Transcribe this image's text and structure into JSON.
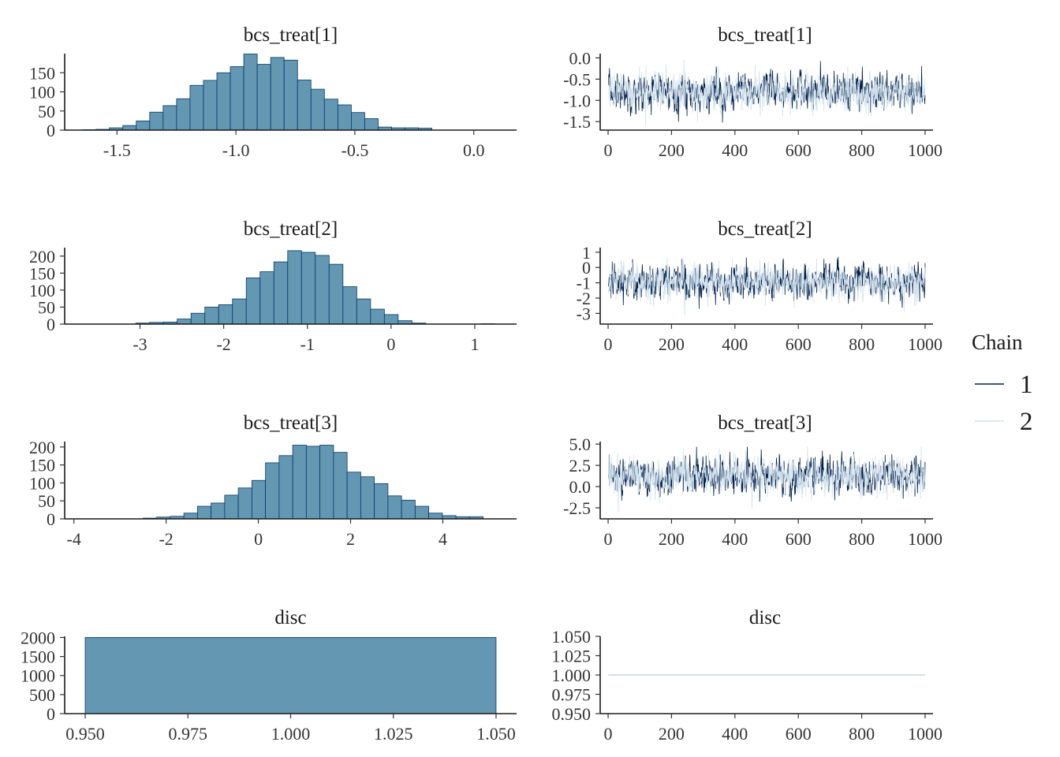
{
  "chart_data": [
    {
      "type": "bar",
      "subtype": "histogram",
      "title": "bcs_treat[1]",
      "xlim": [
        -1.72,
        0.18
      ],
      "ylim": [
        0,
        200
      ],
      "xticks": [
        -1.5,
        -1.0,
        -0.5,
        0.0
      ],
      "xtick_labels": [
        "-1.5",
        "-1.0",
        "-0.5",
        "0.0"
      ],
      "yticks": [
        0,
        50,
        100,
        150
      ],
      "ytick_labels": [
        "0",
        "50",
        "100",
        "150"
      ],
      "bin_start": -1.645,
      "bin_width": 0.0565,
      "counts": [
        1,
        2,
        6,
        12,
        24,
        47,
        64,
        82,
        117,
        130,
        150,
        166,
        199,
        172,
        190,
        183,
        131,
        107,
        81,
        66,
        46,
        30,
        8,
        6,
        6,
        5
      ],
      "color": "#6497b1",
      "edge_color": "#03396c"
    },
    {
      "type": "line",
      "subtype": "trace",
      "title": "bcs_treat[1]",
      "xlim": [
        -25,
        1025
      ],
      "ylim": [
        -1.7,
        0.1
      ],
      "xticks": [
        0,
        200,
        400,
        600,
        800,
        1000
      ],
      "xtick_labels": [
        "0",
        "200",
        "400",
        "600",
        "800",
        "1000"
      ],
      "yticks": [
        0.0,
        -0.5,
        -1.0,
        -1.5
      ],
      "ytick_labels": [
        "0.0",
        "-0.5",
        "-1.0",
        "-1.5"
      ],
      "n_iter": 1000,
      "chain_mean": -0.8,
      "chain_sd": 0.22,
      "chain_min": -1.6,
      "chain_max": 0.0
    },
    {
      "type": "bar",
      "subtype": "histogram",
      "title": "bcs_treat[2]",
      "xlim": [
        -3.9,
        1.5
      ],
      "ylim": [
        0,
        225
      ],
      "xticks": [
        -3,
        -2,
        -1,
        0,
        1
      ],
      "xtick_labels": [
        "-3",
        "-2",
        "-1",
        "0",
        "1"
      ],
      "yticks": [
        0,
        50,
        100,
        150,
        200
      ],
      "ytick_labels": [
        "0",
        "50",
        "100",
        "150",
        "200"
      ],
      "bin_start": -3.05,
      "bin_width": 0.165,
      "counts": [
        3,
        5,
        6,
        15,
        32,
        50,
        57,
        74,
        136,
        154,
        183,
        216,
        211,
        202,
        176,
        110,
        74,
        44,
        28,
        10,
        3,
        0,
        0,
        0,
        0,
        1
      ],
      "color": "#6497b1",
      "edge_color": "#03396c"
    },
    {
      "type": "line",
      "subtype": "trace",
      "title": "bcs_treat[2]",
      "xlim": [
        -25,
        1025
      ],
      "ylim": [
        -3.7,
        1.3
      ],
      "xticks": [
        0,
        200,
        400,
        600,
        800,
        1000
      ],
      "xtick_labels": [
        "0",
        "200",
        "400",
        "600",
        "800",
        "1000"
      ],
      "yticks": [
        1,
        0,
        -1,
        -2,
        -3
      ],
      "ytick_labels": [
        "1",
        "0",
        "-1",
        "-2",
        "-3"
      ],
      "n_iter": 1000,
      "chain_mean": -0.95,
      "chain_sd": 0.6,
      "chain_min": -3.5,
      "chain_max": 1.0
    },
    {
      "type": "bar",
      "subtype": "histogram",
      "title": "bcs_treat[3]",
      "xlim": [
        -4.2,
        5.6
      ],
      "ylim": [
        0,
        215
      ],
      "xticks": [
        -4,
        -2,
        0,
        2,
        4
      ],
      "xtick_labels": [
        "-4",
        "-2",
        "0",
        "2",
        "4"
      ],
      "yticks": [
        0,
        50,
        100,
        150,
        200
      ],
      "ytick_labels": [
        "0",
        "50",
        "100",
        "150",
        "200"
      ],
      "bin_start": -2.5,
      "bin_width": 0.295,
      "counts": [
        2,
        5,
        7,
        16,
        35,
        44,
        66,
        86,
        107,
        156,
        176,
        205,
        202,
        205,
        185,
        130,
        117,
        98,
        64,
        52,
        35,
        16,
        9,
        6,
        6
      ],
      "color": "#6497b1",
      "edge_color": "#03396c"
    },
    {
      "type": "line",
      "subtype": "trace",
      "title": "bcs_treat[3]",
      "xlim": [
        -25,
        1025
      ],
      "ylim": [
        -3.8,
        5.3
      ],
      "xticks": [
        0,
        200,
        400,
        600,
        800,
        1000
      ],
      "xtick_labels": [
        "0",
        "200",
        "400",
        "600",
        "800",
        "1000"
      ],
      "yticks": [
        5.0,
        2.5,
        0.0,
        -2.5
      ],
      "ytick_labels": [
        "5.0",
        "2.5",
        "0.0",
        "-2.5"
      ],
      "n_iter": 1000,
      "chain_mean": 1.2,
      "chain_sd": 1.15,
      "chain_min": -3.5,
      "chain_max": 4.7
    },
    {
      "type": "bar",
      "subtype": "histogram",
      "title": "disc",
      "xlim": [
        0.945,
        1.055
      ],
      "ylim": [
        0,
        2030
      ],
      "xticks": [
        0.95,
        0.975,
        1.0,
        1.025,
        1.05
      ],
      "xtick_labels": [
        "0.950",
        "0.975",
        "1.000",
        "1.025",
        "1.050"
      ],
      "yticks": [
        0,
        500,
        1000,
        1500,
        2000
      ],
      "ytick_labels": [
        "0",
        "500",
        "1000",
        "1500",
        "2000"
      ],
      "bin_start": 0.95,
      "bin_width": 0.1,
      "counts": [
        2000
      ],
      "color": "#6497b1",
      "edge_color": "#03396c"
    },
    {
      "type": "line",
      "subtype": "trace",
      "title": "disc",
      "xlim": [
        -25,
        1025
      ],
      "ylim": [
        0.95,
        1.05
      ],
      "xticks": [
        0,
        200,
        400,
        600,
        800,
        1000
      ],
      "xtick_labels": [
        "0",
        "200",
        "400",
        "600",
        "800",
        "1000"
      ],
      "yticks": [
        1.05,
        1.025,
        1.0,
        0.975,
        0.95
      ],
      "ytick_labels": [
        "1.050",
        "1.025",
        "1.000",
        "0.975",
        "0.950"
      ],
      "n_iter": 1000,
      "chain_mean": 1.0,
      "chain_sd": 0,
      "chain_min": 1.0,
      "chain_max": 1.0
    }
  ],
  "legend": {
    "title": "Chain",
    "entries": [
      {
        "label": "1",
        "color": "#011f4b"
      },
      {
        "label": "2",
        "color": "#d1e1ec"
      }
    ],
    "placement": "right"
  }
}
